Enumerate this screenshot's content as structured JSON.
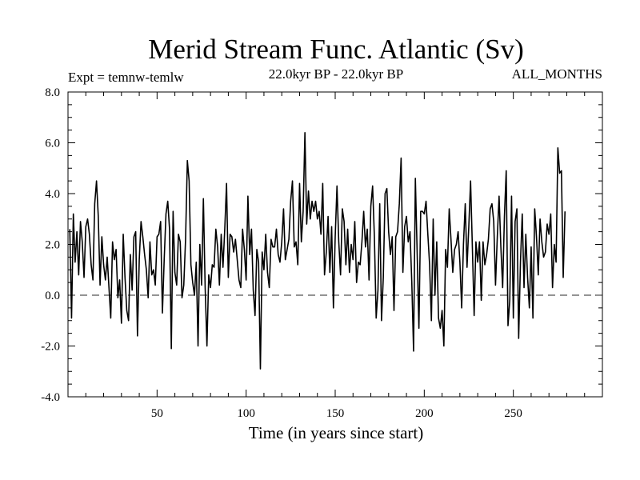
{
  "chart_data": {
    "type": "line",
    "title": "Merid Stream Func. Atlantic (Sv)",
    "subtitle": "22.0kyr BP - 22.0kyr BP",
    "experiment_label": "Expt = temnw-temlw",
    "months_label": "ALL_MONTHS",
    "xlabel": "Time (in years since start)",
    "ylabel": "",
    "xlim": [
      0,
      300
    ],
    "ylim": [
      -4.0,
      8.0
    ],
    "x_ticks": [
      50,
      100,
      150,
      200,
      250
    ],
    "x_tick_labels": [
      "50",
      "100",
      "150",
      "200",
      "250"
    ],
    "y_ticks": [
      -4.0,
      -2.0,
      0.0,
      2.0,
      4.0,
      6.0,
      8.0
    ],
    "y_tick_labels": [
      "-4.0",
      "-2.0",
      "0.0",
      "2.0",
      "4.0",
      "6.0",
      "8.0"
    ],
    "reference_line": {
      "y": 0.0,
      "style": "dashed"
    },
    "series": [
      {
        "name": "Merid Stream Func. Atlantic",
        "x_start": 1,
        "x_step": 1,
        "values": [
          2.6,
          -0.9,
          3.2,
          1.3,
          2.5,
          0.8,
          2.9,
          2.1,
          0.7,
          2.7,
          3.0,
          2.4,
          1.2,
          0.6,
          3.6,
          4.5,
          3.1,
          0.4,
          2.3,
          1.2,
          0.6,
          1.5,
          0.3,
          -0.9,
          2.1,
          1.4,
          1.8,
          -0.1,
          0.6,
          -1.1,
          2.4,
          0.7,
          -0.6,
          -1.0,
          1.6,
          0.2,
          2.3,
          2.5,
          -1.6,
          1.4,
          2.9,
          2.3,
          1.6,
          1.0,
          -0.1,
          2.1,
          0.8,
          1.0,
          0.4,
          2.3,
          2.4,
          2.9,
          -0.7,
          1.4,
          3.2,
          3.7,
          2.6,
          -2.1,
          3.3,
          0.9,
          0.4,
          2.4,
          2.1,
          -0.1,
          0.4,
          2.2,
          5.3,
          4.5,
          1.2,
          0.5,
          0.0,
          1.3,
          -2.0,
          2.0,
          0.4,
          3.8,
          0.3,
          -2.0,
          0.8,
          0.3,
          1.2,
          1.1,
          2.6,
          1.9,
          0.4,
          2.4,
          1.1,
          2.6,
          4.4,
          0.7,
          2.4,
          2.3,
          1.7,
          2.2,
          1.4,
          0.6,
          0.3,
          2.6,
          1.8,
          0.6,
          3.9,
          1.6,
          2.6,
          0.2,
          -0.8,
          1.8,
          1.3,
          -2.9,
          1.7,
          1.0,
          2.4,
          0.9,
          0.3,
          2.2,
          1.9,
          1.9,
          2.6,
          1.6,
          1.3,
          2.1,
          3.4,
          1.4,
          1.8,
          2.2,
          3.7,
          4.5,
          1.9,
          2.1,
          1.2,
          4.4,
          2.1,
          3.3,
          6.4,
          2.8,
          4.1,
          3.0,
          3.7,
          3.3,
          3.7,
          3.0,
          3.3,
          2.4,
          4.4,
          0.8,
          1.7,
          3.1,
          0.9,
          2.7,
          -0.5,
          2.3,
          4.3,
          2.1,
          0.8,
          3.4,
          2.9,
          1.2,
          2.6,
          0.9,
          2.0,
          1.4,
          2.9,
          0.5,
          1.3,
          1.2,
          2.1,
          3.3,
          1.9,
          2.6,
          0.6,
          3.5,
          4.3,
          2.3,
          -0.9,
          0.2,
          3.6,
          -1.0,
          0.7,
          4.0,
          4.2,
          2.5,
          1.6,
          2.3,
          -0.6,
          2.3,
          2.5,
          3.6,
          5.4,
          0.9,
          2.7,
          3.1,
          2.1,
          2.5,
          0.5,
          -2.2,
          4.6,
          1.7,
          -1.3,
          3.3,
          3.3,
          3.2,
          3.7,
          2.4,
          1.2,
          -1.0,
          3.0,
          0.0,
          2.1,
          -0.9,
          -1.3,
          -0.6,
          -2.0,
          1.8,
          1.1,
          3.4,
          2.2,
          0.9,
          1.8,
          2.0,
          2.5,
          1.3,
          -0.5,
          2.0,
          3.6,
          1.1,
          2.7,
          4.5,
          1.9,
          -0.8,
          2.1,
          1.3,
          2.1,
          -0.2,
          2.1,
          1.2,
          1.6,
          2.2,
          3.4,
          3.6,
          2.9,
          0.4,
          2.3,
          3.9,
          1.9,
          0.3,
          3.1,
          4.9,
          -1.2,
          -0.2,
          3.9,
          -0.9,
          2.9,
          3.4,
          -1.7,
          1.3,
          3.2,
          0.3,
          2.4,
          0.7,
          -0.5,
          1.9,
          -0.9,
          3.4,
          2.3,
          0.8,
          3.0,
          2.1,
          1.5,
          1.7,
          2.8,
          2.4,
          3.2,
          0.3,
          2.0,
          1.3,
          5.8,
          4.8,
          4.9,
          0.7,
          3.3
        ]
      }
    ]
  }
}
